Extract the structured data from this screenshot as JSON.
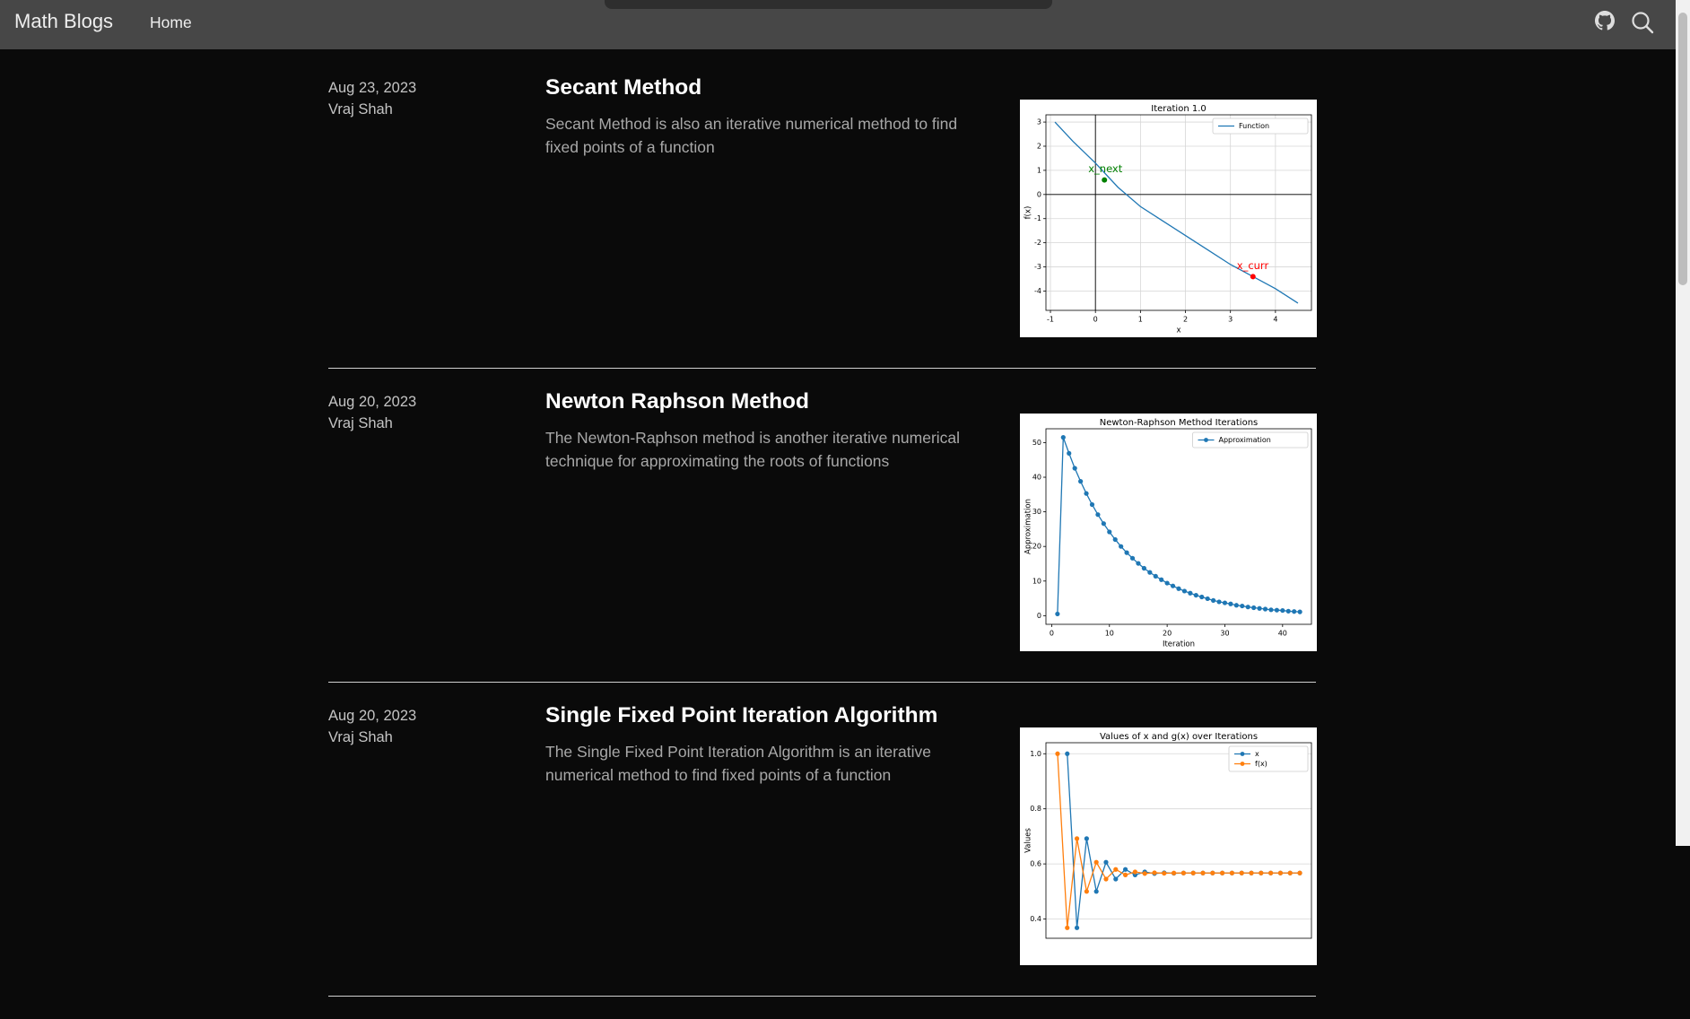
{
  "header": {
    "brand": "Math Blogs",
    "nav": [
      "Home"
    ]
  },
  "posts": [
    {
      "date": "Aug 23, 2023",
      "author": "Vraj Shah",
      "title": "Secant Method",
      "summary": "Secant Method is also an iterative numerical method to find fixed points of a function",
      "chart_data": {
        "type": "line",
        "title": "Iteration 1.0",
        "x_label": "x",
        "y_label": "f(x)",
        "x": [
          -0.9,
          -0.5,
          0,
          0.5,
          1,
          1.5,
          2,
          2.5,
          3,
          3.5,
          4,
          4.5
        ],
        "series": [
          {
            "name": "Function",
            "color": "#1f77b4",
            "marker": false,
            "values": [
              3.0,
              2.2,
              1.3,
              0.3,
              -0.5,
              -1.1,
              -1.7,
              -2.3,
              -2.9,
              -3.4,
              -3.9,
              -4.5
            ]
          }
        ],
        "annotations": [
          {
            "text": "x_next",
            "x": 0.2,
            "y": 0.6,
            "color": "green"
          },
          {
            "text": "x_curr",
            "x": 3.5,
            "y": -3.4,
            "color": "red"
          }
        ],
        "xlim": [
          -1.1,
          4.8
        ],
        "ylim": [
          -4.8,
          3.3
        ],
        "xticks": [
          -1,
          0,
          1,
          2,
          3,
          4
        ],
        "yticks": [
          -4,
          -3,
          -2,
          -1,
          0,
          1,
          2,
          3
        ],
        "grid": true,
        "zero_lines": true,
        "legend": "upper right"
      }
    },
    {
      "date": "Aug 20, 2023",
      "author": "Vraj Shah",
      "title": "Newton Raphson Method",
      "summary": "The Newton-Raphson method is another iterative numerical technique for approximating the roots of functions",
      "chart_data": {
        "type": "line",
        "title": "Newton-Raphson Method Iterations",
        "x_label": "Iteration",
        "y_label": "Approximation",
        "x": [
          1,
          2,
          3,
          4,
          5,
          6,
          7,
          8,
          9,
          10,
          11,
          12,
          13,
          14,
          15,
          16,
          17,
          18,
          19,
          20,
          21,
          22,
          23,
          24,
          25,
          26,
          27,
          28,
          29,
          30,
          31,
          32,
          33,
          34,
          35,
          36,
          37,
          38,
          39,
          40,
          41,
          42,
          43
        ],
        "series": [
          {
            "name": "Approximation",
            "color": "#1f77b4",
            "marker": true,
            "values": [
              0.5,
              51.5,
              46.9,
              42.6,
              38.8,
              35.3,
              32.1,
              29.2,
              26.6,
              24.2,
              22.0,
              20.0,
              18.2,
              16.6,
              15.1,
              13.7,
              12.5,
              11.4,
              10.4,
              9.4,
              8.6,
              7.8,
              7.1,
              6.5,
              5.9,
              5.4,
              4.9,
              4.4,
              4.0,
              3.7,
              3.4,
              3.0,
              2.8,
              2.5,
              2.3,
              2.1,
              1.9,
              1.7,
              1.6,
              1.5,
              1.3,
              1.2,
              1.1
            ]
          }
        ],
        "xlim": [
          -1,
          45
        ],
        "ylim": [
          -2.5,
          54
        ],
        "xticks": [
          0,
          10,
          20,
          30,
          40
        ],
        "yticks": [
          0,
          10,
          20,
          30,
          40,
          50
        ],
        "grid": false,
        "legend": "upper right"
      }
    },
    {
      "date": "Aug 20, 2023",
      "author": "Vraj Shah",
      "title": "Single Fixed Point Iteration Algorithm",
      "summary": "The Single Fixed Point Iteration Algorithm is an iterative numerical method to find fixed points of a function",
      "chart_data": {
        "type": "line",
        "title": "Values of x and g(x) over Iterations",
        "y_label": "Values",
        "x": [
          0,
          1,
          2,
          3,
          4,
          5,
          6,
          7,
          8,
          9,
          10,
          11,
          12,
          13,
          14,
          15,
          16,
          17,
          18,
          19,
          20,
          21,
          22,
          23,
          24,
          25
        ],
        "series": [
          {
            "name": "x",
            "color": "#1f77b4",
            "marker": true,
            "values": [
              null,
              1.0,
              0.368,
              0.692,
              0.5,
              0.606,
              0.545,
              0.58,
              0.56,
              0.571,
              0.565,
              0.568,
              0.566,
              0.567,
              0.567,
              0.567,
              0.567,
              0.567,
              0.567,
              0.567,
              0.567,
              0.567,
              0.567,
              0.567,
              0.567,
              0.567
            ]
          },
          {
            "name": "f(x)",
            "color": "#ff7f0e",
            "marker": true,
            "values": [
              1.0,
              0.368,
              0.692,
              0.5,
              0.606,
              0.545,
              0.58,
              0.56,
              0.571,
              0.565,
              0.568,
              0.566,
              0.567,
              0.567,
              0.567,
              0.567,
              0.567,
              0.567,
              0.567,
              0.567,
              0.567,
              0.567,
              0.567,
              0.567,
              0.567,
              0.567
            ]
          }
        ],
        "xlim": [
          -1.2,
          26.2
        ],
        "ylim": [
          0.33,
          1.04
        ],
        "yticks": [
          0.4,
          0.6,
          0.8,
          {
            "value": 1.0,
            "label": "1.0"
          }
        ],
        "grid": true,
        "legend": "upper right"
      }
    }
  ]
}
